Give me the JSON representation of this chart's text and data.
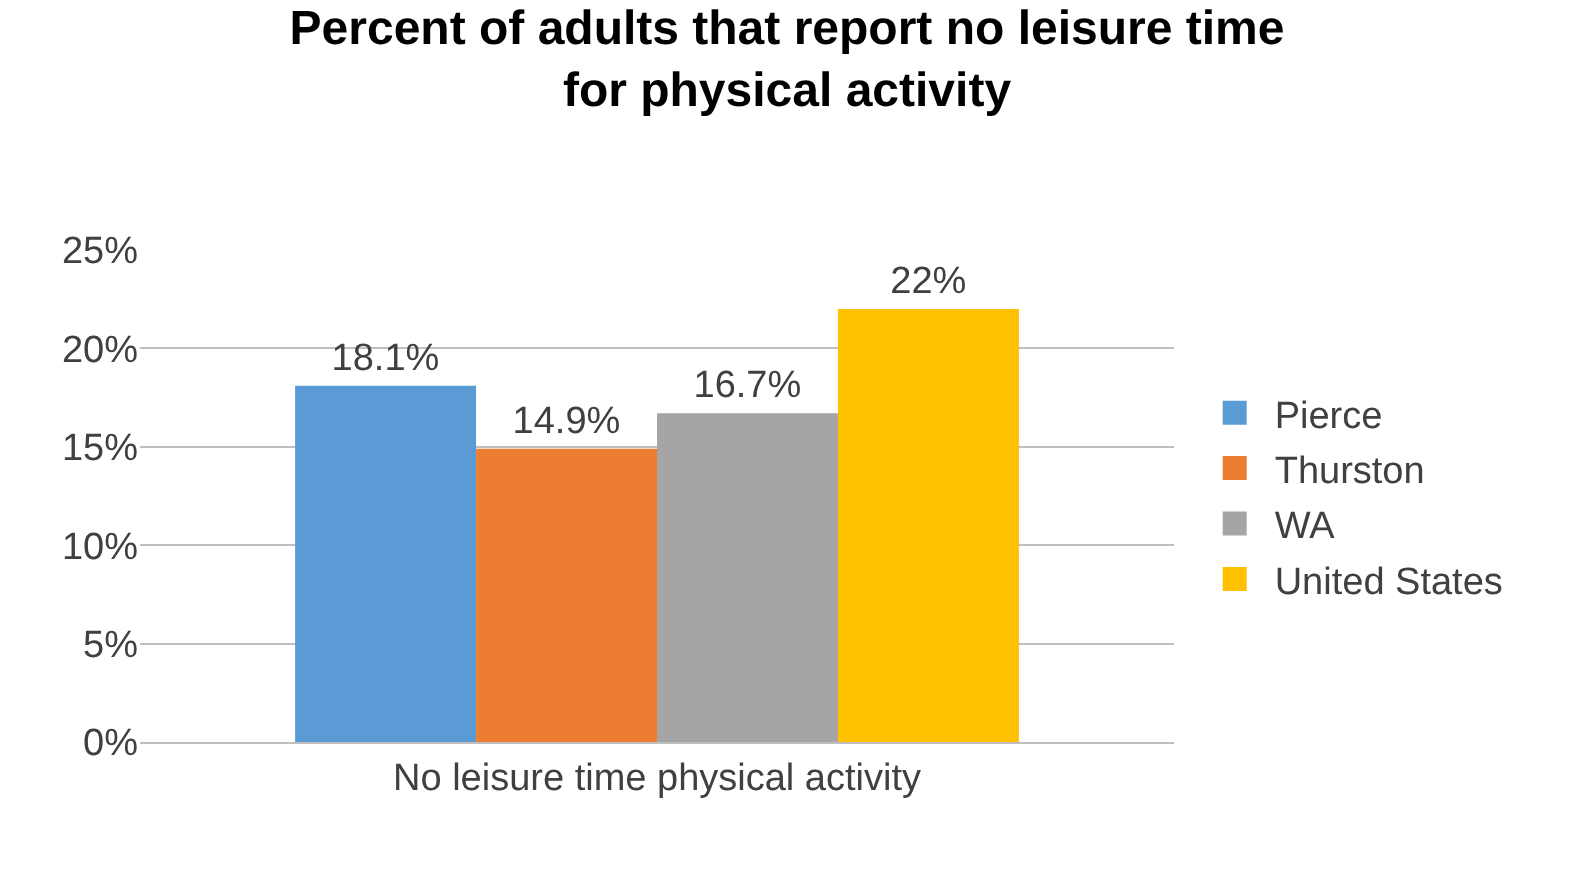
{
  "chart_data": {
    "type": "bar",
    "title": "Percent of adults that report no leisure time for physical activity",
    "categories": [
      "No leisure time physical activity"
    ],
    "series": [
      {
        "name": "Pierce",
        "color": "#5b9bd5",
        "values": [
          18.1
        ],
        "value_labels": [
          "18.1%"
        ]
      },
      {
        "name": "Thurston",
        "color": "#ed7d31",
        "values": [
          14.9
        ],
        "value_labels": [
          "14.9%"
        ]
      },
      {
        "name": "WA",
        "color": "#a5a5a5",
        "values": [
          16.7
        ],
        "value_labels": [
          "16.7%"
        ]
      },
      {
        "name": "United States",
        "color": "#ffc000",
        "values": [
          22
        ],
        "value_labels": [
          "22%"
        ]
      }
    ],
    "ylim": [
      0,
      25
    ],
    "yticks": [
      {
        "value": 0,
        "label": "0%"
      },
      {
        "value": 5,
        "label": "5%"
      },
      {
        "value": 10,
        "label": "10%"
      },
      {
        "value": 15,
        "label": "15%"
      },
      {
        "value": 20,
        "label": "20%"
      },
      {
        "value": 25,
        "label": "25%"
      }
    ],
    "grid": "y",
    "legend": "right"
  }
}
